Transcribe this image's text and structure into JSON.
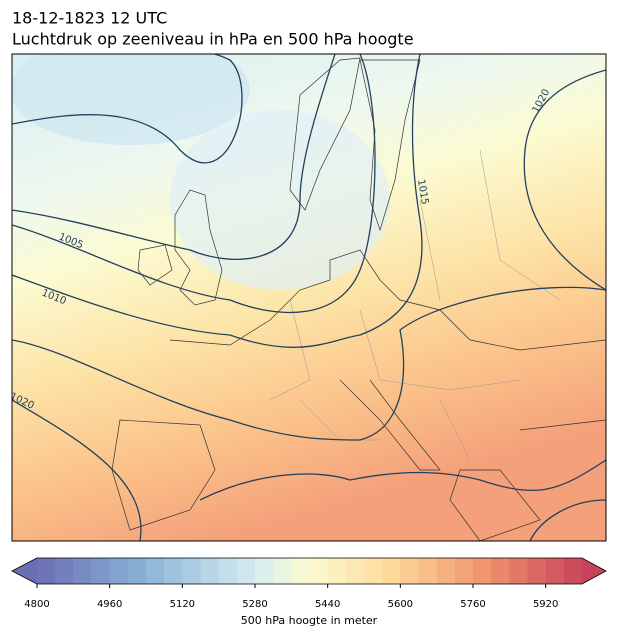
{
  "header": {
    "date": "18-12-1823 12 UTC",
    "title": "Luchtdruk op zeeniveau in hPa en 500 hPa hoogte"
  },
  "map": {
    "contour_labels": [
      "1005",
      "1010",
      "1020",
      "1015",
      "1020"
    ]
  },
  "colorbar": {
    "label": "500 hPa hoogte in meter",
    "lim": [
      4800,
      6000
    ],
    "levels": 40,
    "ticks": [
      4800,
      4960,
      5120,
      5280,
      5440,
      5600,
      5760,
      5920
    ]
  }
}
